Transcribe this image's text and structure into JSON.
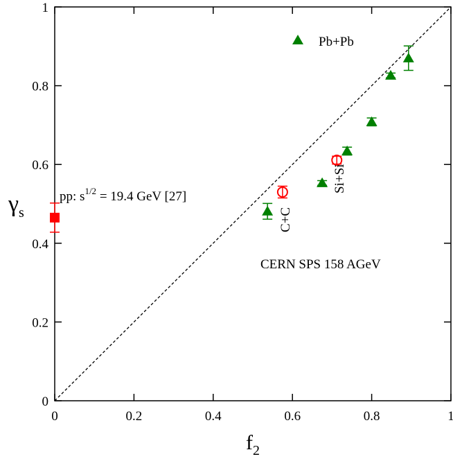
{
  "chart_data": {
    "type": "scatter",
    "xlabel": "f",
    "xlabel_sub": "2",
    "ylabel": "γ",
    "ylabel_sub": "s",
    "xlim": [
      0,
      1
    ],
    "ylim": [
      0,
      1
    ],
    "xticks": [
      0,
      0.2,
      0.4,
      0.6,
      0.8,
      1
    ],
    "yticks": [
      0,
      0.2,
      0.4,
      0.6,
      0.8,
      1
    ],
    "series": [
      {
        "name": "Pb+Pb",
        "color": "#008000",
        "marker": "triangle",
        "x": [
          0.537,
          0.675,
          0.738,
          0.8,
          0.848,
          0.893
        ],
        "values": [
          0.481,
          0.553,
          0.634,
          0.708,
          0.826,
          0.87
        ],
        "errors": [
          0.02,
          0.006,
          0.01,
          0.01,
          0.006,
          0.031
        ]
      },
      {
        "color": "#ff0000",
        "marker": "circle",
        "point_labels": [
          "C+C",
          "Si+Si"
        ],
        "x": [
          0.575,
          0.712
        ],
        "values": [
          0.53,
          0.611
        ],
        "errors": [
          0.015,
          0.01
        ]
      },
      {
        "color": "#ff0000",
        "marker": "square",
        "label": [
          "pp: s",
          "1/2",
          " = 19.4 GeV [27]"
        ],
        "x": [
          0
        ],
        "values": [
          0.465
        ],
        "errors": [
          0.037
        ]
      }
    ],
    "annotation": "CERN SPS 158 AGeV"
  }
}
